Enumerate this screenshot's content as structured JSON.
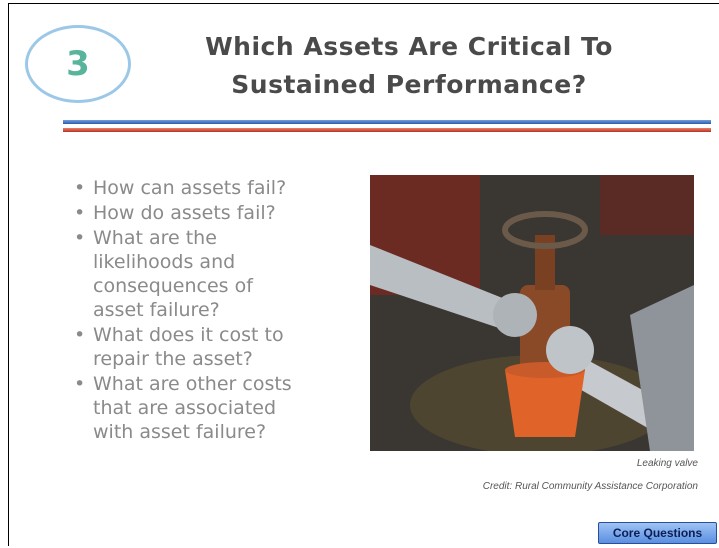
{
  "header": {
    "number": "3",
    "title_lines": [
      "Which Assets Are Critical To",
      "Sustained Performance?"
    ]
  },
  "bullets": [
    {
      "lines": [
        "How can assets fail?"
      ]
    },
    {
      "lines": [
        "How do assets fail?"
      ]
    },
    {
      "lines": [
        "What are the",
        "likelihoods and",
        "consequences of",
        "asset failure?"
      ]
    },
    {
      "lines": [
        "What does it cost to",
        "repair the asset?"
      ]
    },
    {
      "lines": [
        "What are other costs",
        "that are associated",
        "with asset failure?"
      ]
    }
  ],
  "photo": {
    "caption": "Leaking valve",
    "credit": "Credit: Rural Community Assistance Corporation"
  },
  "button": {
    "label": "Core Questions"
  }
}
